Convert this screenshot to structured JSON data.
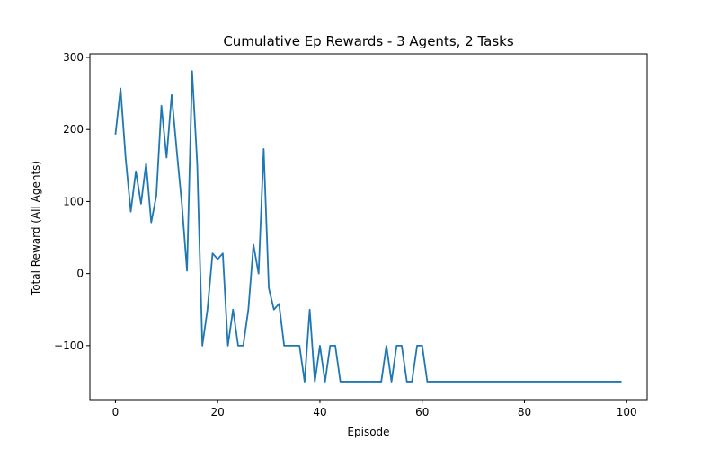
{
  "chart_data": {
    "type": "line",
    "title": "Cumulative Ep Rewards - 3 Agents, 2 Tasks",
    "xlabel": "Episode",
    "ylabel": "Total Reward (All Agents)",
    "xlim": [
      -5,
      104
    ],
    "ylim": [
      -175,
      305
    ],
    "xticks": [
      0,
      20,
      40,
      60,
      80,
      100
    ],
    "yticks": [
      -100,
      0,
      100,
      200,
      300
    ],
    "xtick_labels": [
      "0",
      "20",
      "40",
      "60",
      "80",
      "100"
    ],
    "ytick_labels": [
      "−100",
      "0",
      "100",
      "200",
      "300"
    ],
    "grid": false,
    "legend": "none",
    "series": [
      {
        "color": "#1f77b4",
        "x": [
          0,
          1,
          2,
          3,
          4,
          5,
          6,
          7,
          8,
          9,
          10,
          11,
          12,
          13,
          14,
          15,
          16,
          17,
          18,
          19,
          20,
          21,
          22,
          23,
          24,
          25,
          26,
          27,
          28,
          29,
          30,
          31,
          32,
          33,
          34,
          35,
          36,
          37,
          38,
          39,
          40,
          41,
          42,
          43,
          44,
          45,
          46,
          47,
          48,
          49,
          50,
          51,
          52,
          53,
          54,
          55,
          56,
          57,
          58,
          59,
          60,
          61,
          62,
          63,
          64,
          65,
          66,
          67,
          68,
          69,
          70,
          71,
          72,
          73,
          74,
          75,
          76,
          77,
          78,
          79,
          80,
          81,
          82,
          83,
          84,
          85,
          86,
          87,
          88,
          89,
          90,
          91,
          92,
          93,
          94,
          95,
          96,
          97,
          98,
          99
        ],
        "values": [
          193,
          257,
          160,
          86,
          142,
          97,
          153,
          71,
          108,
          233,
          161,
          248,
          170,
          96,
          4,
          281,
          152,
          -100,
          -50,
          28,
          20,
          28,
          -100,
          -50,
          -100,
          -100,
          -50,
          40,
          0,
          173,
          -20,
          -50,
          -42,
          -100,
          -100,
          -100,
          -100,
          -150,
          -50,
          -150,
          -100,
          -150,
          -100,
          -100,
          -150,
          -150,
          -150,
          -150,
          -150,
          -150,
          -150,
          -150,
          -150,
          -100,
          -150,
          -100,
          -100,
          -150,
          -150,
          -100,
          -100,
          -150,
          -150,
          -150,
          -150,
          -150,
          -150,
          -150,
          -150,
          -150,
          -150,
          -150,
          -150,
          -150,
          -150,
          -150,
          -150,
          -150,
          -150,
          -150,
          -150,
          -150,
          -150,
          -150,
          -150,
          -150,
          -150,
          -150,
          -150,
          -150,
          -150,
          -150,
          -150,
          -150,
          -150,
          -150,
          -150,
          -150,
          -150,
          -150
        ]
      }
    ]
  }
}
